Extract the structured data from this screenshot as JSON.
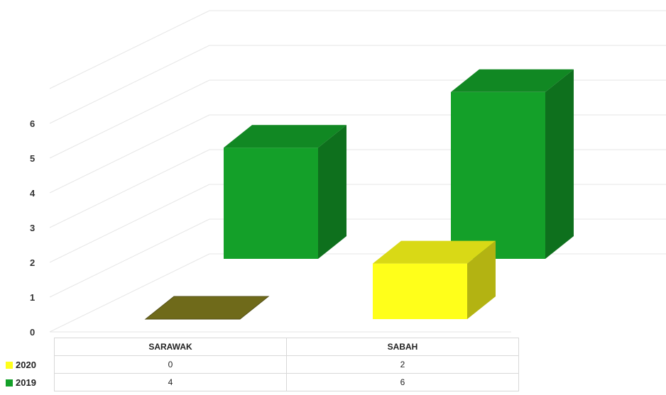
{
  "chart_data": {
    "type": "bar",
    "categories": [
      "SARAWAK",
      "SABAH"
    ],
    "series": [
      {
        "name": "2020",
        "values": [
          0,
          2
        ],
        "color": "#ffff1a"
      },
      {
        "name": "2019",
        "values": [
          4,
          6
        ],
        "color": "#14a029"
      }
    ],
    "y_ticks": [
      "0",
      "1",
      "2",
      "3",
      "4",
      "5",
      "6"
    ],
    "ylim": [
      0,
      7
    ],
    "style": "3d-column",
    "legend": "data-table-left",
    "grid": true
  }
}
